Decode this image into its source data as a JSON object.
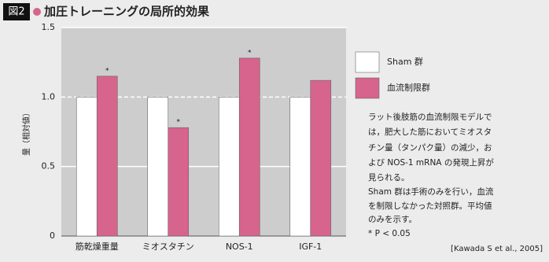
{
  "header": {
    "figure_label": "図2"
  },
  "chart_data": {
    "type": "bar",
    "title": "加圧トレーニングの局所的効果",
    "y_label": "量（相対値）",
    "categories": [
      "筋乾燥重量",
      "ミオスタチン",
      "NOS-1",
      "IGF-1"
    ],
    "series": [
      {
        "name": "Sham 群",
        "color": "#ffffff",
        "values": [
          1.0,
          1.0,
          1.0,
          1.0
        ]
      },
      {
        "name": "血流制限群",
        "color": "#d6648c",
        "values": [
          1.15,
          0.78,
          1.28,
          1.12
        ],
        "markers": [
          "*",
          "*",
          "*",
          null
        ]
      }
    ],
    "ylim": [
      0,
      1.5
    ],
    "yticks": [
      0,
      {
        "value": 0.5,
        "label": "0.5"
      },
      {
        "value": 1.0,
        "label": "1.0"
      },
      {
        "value": 1.5,
        "label": "1.5"
      }
    ],
    "grid": true,
    "reference_line": 1.0
  },
  "note": [
    "ラット後肢筋の血流制限モデルで",
    "は，肥大した筋においてミオスタ",
    "チン量（タンパク量）の減少，お",
    "よび NOS-1 mRNA の発現上昇が",
    "見られる。",
    "Sham 群は手術のみを行い，血流",
    "を制限しなかった対照群。平均値",
    "のみを示す。"
  ],
  "footnote": "* P < 0.05",
  "citation": "[Kawada S et al., 2005]"
}
